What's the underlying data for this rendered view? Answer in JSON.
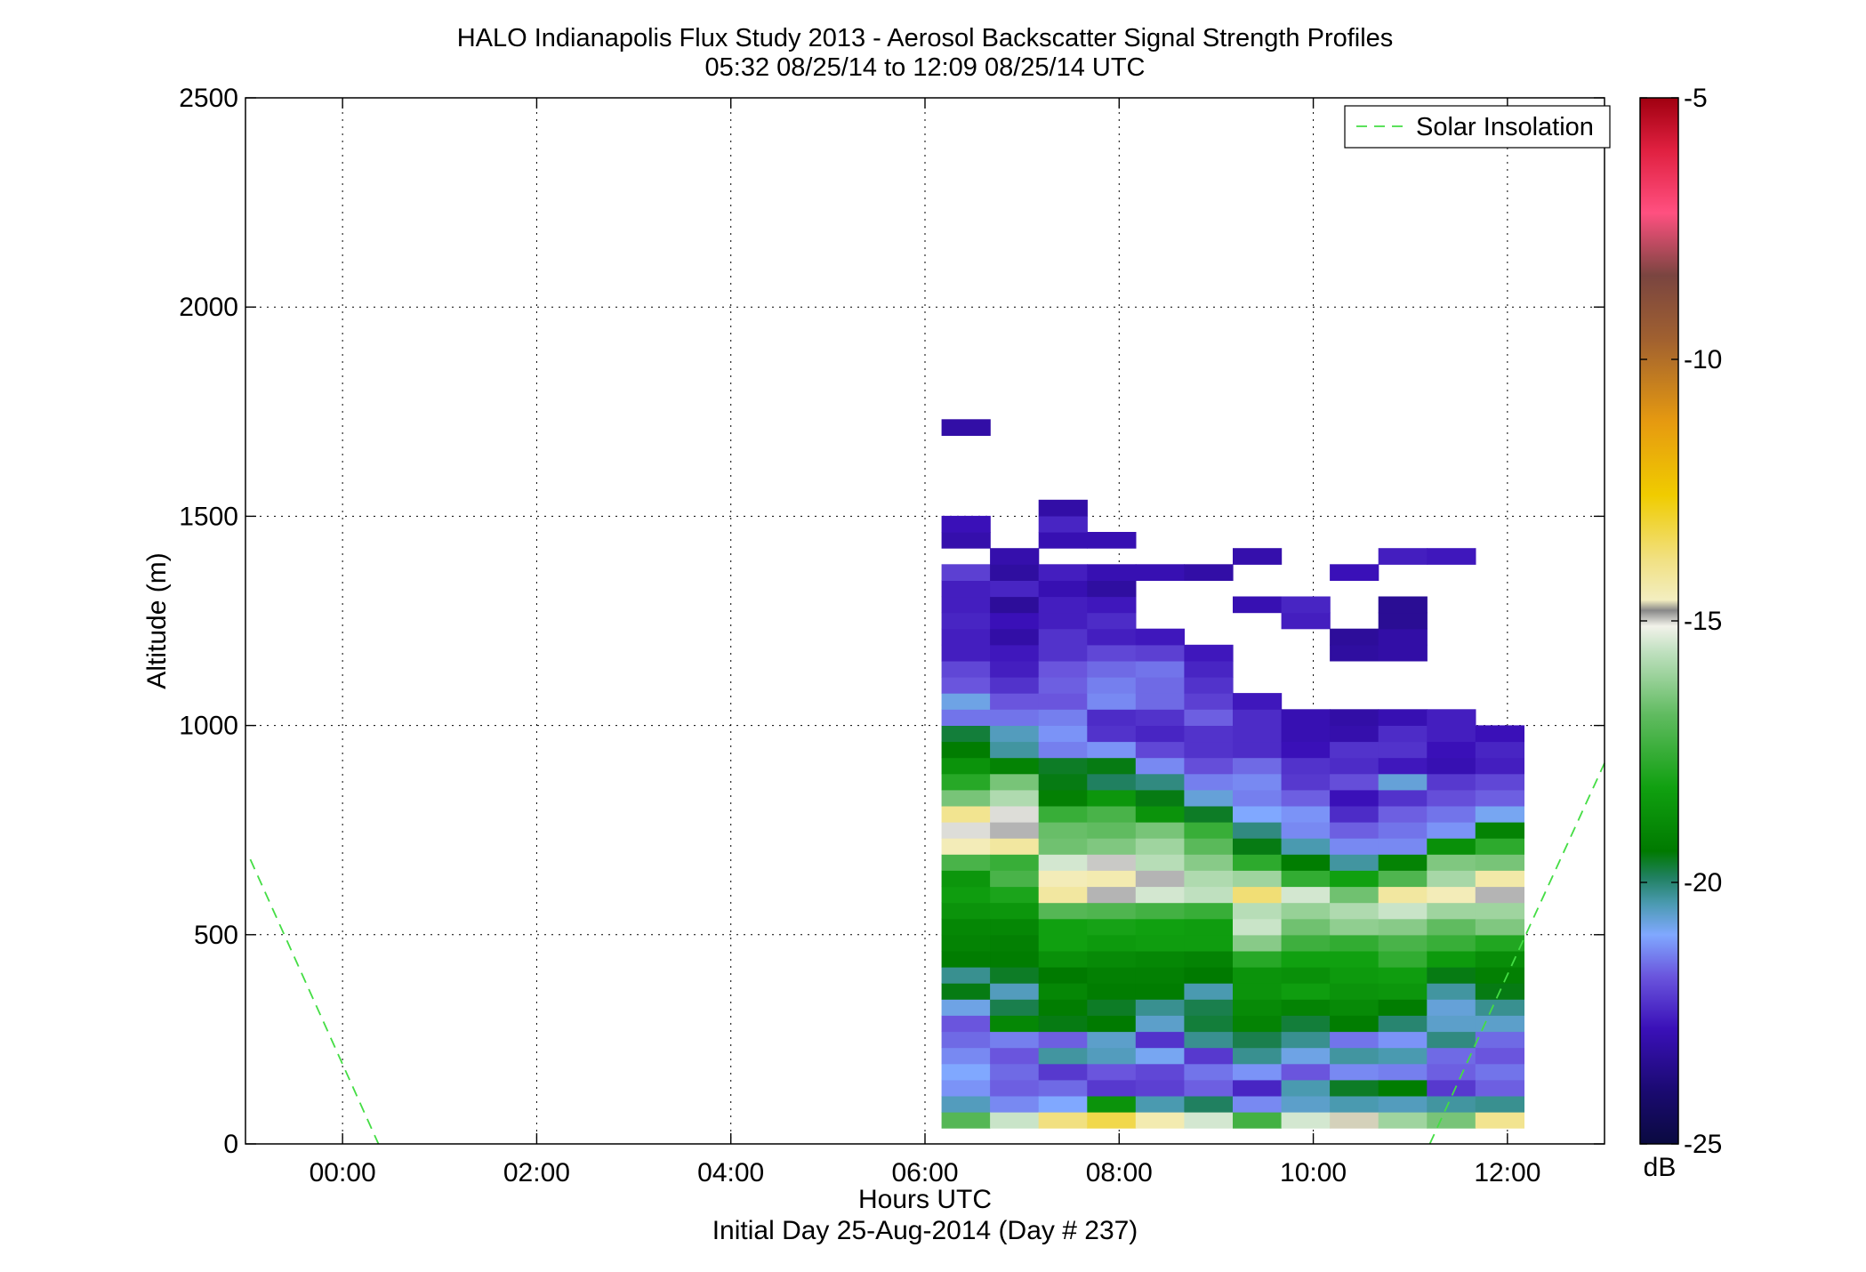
{
  "chart_data": {
    "type": "heatmap",
    "title": "HALO Indianapolis Flux Study 2013 - Aerosol Backscatter Signal Strength Profiles",
    "subtitle": "05:32 08/25/14 to 12:09 08/25/14  UTC",
    "xlabel": "Hours UTC",
    "xlabel2": "Initial Day 25-Aug-2014 (Day # 237)",
    "ylabel": "Altitude (m)",
    "xlim": [
      -1,
      13
    ],
    "ylim": [
      0,
      2500
    ],
    "x_ticks": [
      {
        "value": 0,
        "label": "00:00"
      },
      {
        "value": 2,
        "label": "02:00"
      },
      {
        "value": 4,
        "label": "04:00"
      },
      {
        "value": 6,
        "label": "06:00"
      },
      {
        "value": 8,
        "label": "08:00"
      },
      {
        "value": 10,
        "label": "10:00"
      },
      {
        "value": 12,
        "label": "12:00"
      }
    ],
    "y_ticks": [
      {
        "value": 0,
        "label": "0"
      },
      {
        "value": 500,
        "label": "500"
      },
      {
        "value": 1000,
        "label": "1000"
      },
      {
        "value": 1500,
        "label": "1500"
      },
      {
        "value": 2000,
        "label": "2000"
      },
      {
        "value": 2500,
        "label": "2500"
      }
    ],
    "grid": true,
    "legend": {
      "placement": "top-right",
      "entries": [
        {
          "label": "Solar Insolation",
          "color": "#44dd44",
          "style": "dashed"
        }
      ]
    },
    "colorbar": {
      "unit": "dB",
      "range": [
        -25,
        -5
      ],
      "ticks": [
        {
          "value": -5,
          "label": "-5"
        },
        {
          "value": -10,
          "label": "-10"
        },
        {
          "value": -15,
          "label": "-15"
        },
        {
          "value": -20,
          "label": "-20"
        },
        {
          "value": -25,
          "label": "-25"
        }
      ]
    },
    "solar_insolation": [
      {
        "x": [
          -0.95,
          0.37
        ],
        "y": [
          680,
          0
        ]
      },
      {
        "x": [
          11.2,
          13.0
        ],
        "y": [
          0,
          910
        ]
      }
    ],
    "heatmap": {
      "x_start": 6.17,
      "x_step": 0.5,
      "y_start": 38,
      "y_step": 38.5,
      "columns": [
        [
          -17,
          -20.5,
          -21.2,
          -21,
          -21.3,
          -21.6,
          -21.8,
          -20.8,
          -19.5,
          -20.2,
          -19.3,
          -19.1,
          -19,
          -18.6,
          -18.3,
          -18.5,
          -17.2,
          -14.5,
          -15,
          -14,
          -16.5,
          -17.8,
          -18.6,
          -19.3,
          -19.7,
          -21.5,
          -20.8,
          -21.8,
          -22,
          -22.6,
          -22.6,
          -22.5,
          -22.6,
          -22.6,
          -22.1,
          null,
          -23,
          -22.8,
          null,
          null,
          null,
          null,
          null,
          -23.1
        ],
        [
          -15.5,
          -21.3,
          -21.7,
          -21.6,
          -21.8,
          -21.4,
          -19,
          -19.8,
          -20.5,
          -19.6,
          -19.3,
          -19.2,
          -19,
          -18.5,
          -18,
          -17.2,
          -17.5,
          -14.2,
          -14.8,
          -15,
          -15.8,
          -16.5,
          -19.1,
          -20.3,
          -20.5,
          -21.5,
          -21.8,
          -22.3,
          -22.6,
          -22.7,
          -23.1,
          -22.8,
          -23.3,
          -22.5,
          -23.2,
          -23
        ],
        [
          -13.8,
          -21,
          -21.6,
          -22.2,
          -20.3,
          -21.7,
          -19.5,
          -19.3,
          -19,
          -19.4,
          -18.7,
          -18.2,
          -18.2,
          -17,
          -14.2,
          -14.5,
          -15.4,
          -16.6,
          -16.7,
          -17.5,
          -19.2,
          -19.5,
          -19.6,
          -21.4,
          -21.2,
          -21.4,
          -21.8,
          -21.7,
          -21.8,
          -22.3,
          -22.3,
          -22.6,
          -22.6,
          -22.9,
          -22.6,
          null,
          -22.9,
          -22.5,
          -23.1
        ],
        [
          -13.3,
          -18.6,
          -22.2,
          -21.8,
          -20.5,
          -20.6,
          -19.4,
          -19.6,
          -19.3,
          -19.2,
          -18.9,
          -18.4,
          -18.1,
          -17.1,
          -14.8,
          -14.4,
          -14.9,
          -16.4,
          -16.8,
          -17.2,
          -18.5,
          -19.9,
          -19.5,
          -21.2,
          -22.3,
          -22.4,
          -21.3,
          -21.4,
          -21.6,
          -22,
          -22.6,
          -22.4,
          -22.7,
          -23.2,
          -22.9,
          null,
          -22.9
        ],
        [
          -14.4,
          -20.4,
          -22.1,
          -22,
          -20.9,
          -22.3,
          -20.6,
          -20.2,
          -19.3,
          -19.2,
          -19,
          -18.3,
          -18.2,
          -17.3,
          -15.4,
          -14.8,
          -15.7,
          -16,
          -16.5,
          -18.6,
          -19.5,
          -20.1,
          -21.3,
          -22,
          -22.5,
          -22.3,
          -21.6,
          -21.6,
          -21.5,
          -22.1,
          -22.7,
          null,
          null,
          null,
          -22.9
        ],
        [
          -15.4,
          -19.9,
          -21.7,
          -21.5,
          -22.2,
          -20.2,
          -19.7,
          -19.8,
          -20.4,
          -19.4,
          -19.1,
          -18.3,
          -18.3,
          -17.5,
          -15.6,
          -15.8,
          -16.3,
          -16.9,
          -17.5,
          -19.6,
          -20.7,
          -21.4,
          -21.9,
          -22.3,
          -22.3,
          -21.7,
          -22.1,
          -22.3,
          -22.5,
          -22.7,
          null,
          null,
          null,
          null,
          -23.1
        ],
        [
          -17.3,
          -21.3,
          -22.5,
          -21.2,
          -20.2,
          -19.8,
          -19.1,
          -18.9,
          -18.6,
          -18.6,
          -17.8,
          -16.3,
          -15.5,
          -15.7,
          -13.7,
          -16,
          -17.7,
          -19.5,
          -20.1,
          -21,
          -21.4,
          -21.3,
          -21.6,
          -22.4,
          -22.4,
          -22.4,
          -22.7,
          null,
          null,
          null,
          null,
          null,
          -22.9,
          null,
          null,
          -23
        ],
        [
          -15.4,
          -20.6,
          -20.4,
          -21.8,
          -20.8,
          -20.2,
          -19.7,
          -19.1,
          -18.3,
          -18.7,
          -18.2,
          -17.4,
          -16.6,
          -16.1,
          -15.4,
          -17.6,
          -19.3,
          -20.4,
          -21.3,
          -21.2,
          -21.7,
          -22.2,
          -22.3,
          -22.8,
          -22.9,
          -22.9,
          null,
          null,
          null,
          null,
          null,
          -22.6,
          -22.5
        ],
        [
          -14.7,
          -20.4,
          -19.6,
          -21.3,
          -20.3,
          -21.5,
          -19.3,
          -18.9,
          -18.6,
          -18.4,
          -18.2,
          -17.6,
          -16.2,
          -15.8,
          -16.6,
          -18.2,
          -20.3,
          -21.3,
          -21.7,
          -22.4,
          -22.8,
          -21.9,
          -22.4,
          -22.3,
          -23,
          -23.1,
          null,
          null,
          null,
          -23.2,
          -23.3,
          null,
          null,
          null,
          -22.8
        ],
        [
          -16,
          -20.5,
          -19.3,
          -21.4,
          -20.4,
          -21.2,
          -20,
          -19.3,
          -18.5,
          -18.3,
          -17.6,
          -17.2,
          -16.3,
          -15.5,
          -14.2,
          -17.1,
          -19.1,
          -21.3,
          -21.5,
          -21.7,
          -22.3,
          -20.7,
          -22.7,
          -22.3,
          -22.4,
          -22.9,
          null,
          null,
          null,
          -23.1,
          -23.1,
          -23.4,
          -23.4,
          null,
          null,
          -22.6
        ],
        [
          -16.5,
          -20.3,
          -22.2,
          -21.7,
          -21.6,
          -20.1,
          -20.6,
          -20.7,
          -20.3,
          -19.5,
          -18.4,
          -17.5,
          -16.8,
          -16,
          -14.5,
          -15.9,
          -16.4,
          -18.7,
          -21.2,
          -21.5,
          -21.9,
          -22.2,
          -22.9,
          -22.8,
          -22.6,
          -22.6,
          null,
          null,
          null,
          null,
          null,
          null,
          null,
          null,
          null,
          -22.7
        ],
        [
          -14,
          -20.2,
          -21.7,
          -21.5,
          -21.8,
          -21.6,
          -20.6,
          -20.2,
          -19.5,
          -19.2,
          -18.8,
          -17.9,
          -16.4,
          -16,
          -14.8,
          -14.3,
          -16.5,
          -17.7,
          -19.1,
          -20.9,
          -21.7,
          -22,
          -22.6,
          -22.5,
          -22.8
        ]
      ]
    }
  }
}
